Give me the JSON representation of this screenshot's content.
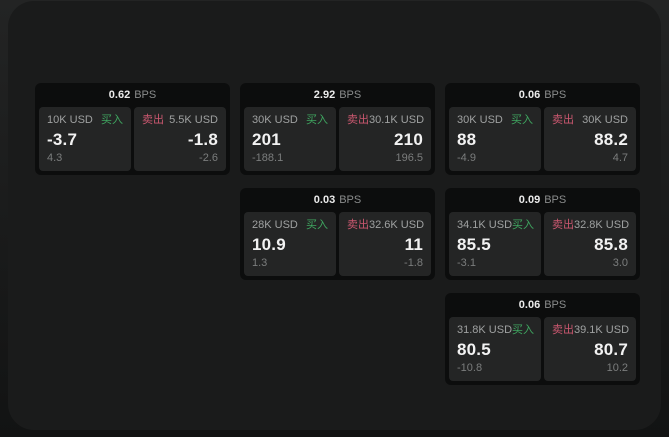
{
  "labels": {
    "unit": "BPS",
    "buy": "买入",
    "sell": "卖出"
  },
  "colors": {
    "buy_accent": "#3fa660",
    "sell_accent": "#cb5870",
    "card_background": "#0c0d0d",
    "panel_background": "#242525",
    "window_background": "#1a1b1b"
  },
  "cards": [
    {
      "bps": "0.62",
      "buy": {
        "size": "10K USD",
        "value": "-3.7",
        "sub": "4.3"
      },
      "sell": {
        "size": "5.5K USD",
        "value": "-1.8",
        "sub": "-2.6"
      }
    },
    {
      "bps": "2.92",
      "buy": {
        "size": "30K USD",
        "value": "201",
        "sub": "-188.1"
      },
      "sell": {
        "size": "30.1K USD",
        "value": "210",
        "sub": "196.5"
      }
    },
    {
      "bps": "0.06",
      "buy": {
        "size": "30K USD",
        "value": "88",
        "sub": "-4.9"
      },
      "sell": {
        "size": "30K USD",
        "value": "88.2",
        "sub": "4.7"
      }
    },
    {
      "bps": "0.03",
      "buy": {
        "size": "28K USD",
        "value": "10.9",
        "sub": "1.3"
      },
      "sell": {
        "size": "32.6K USD",
        "value": "11",
        "sub": "-1.8"
      }
    },
    {
      "bps": "0.09",
      "buy": {
        "size": "34.1K USD",
        "value": "85.5",
        "sub": "-3.1"
      },
      "sell": {
        "size": "32.8K USD",
        "value": "85.8",
        "sub": "3.0"
      }
    },
    {
      "bps": "0.06",
      "buy": {
        "size": "31.8K USD",
        "value": "80.5",
        "sub": "-10.8"
      },
      "sell": {
        "size": "39.1K USD",
        "value": "80.7",
        "sub": "10.2"
      }
    }
  ]
}
